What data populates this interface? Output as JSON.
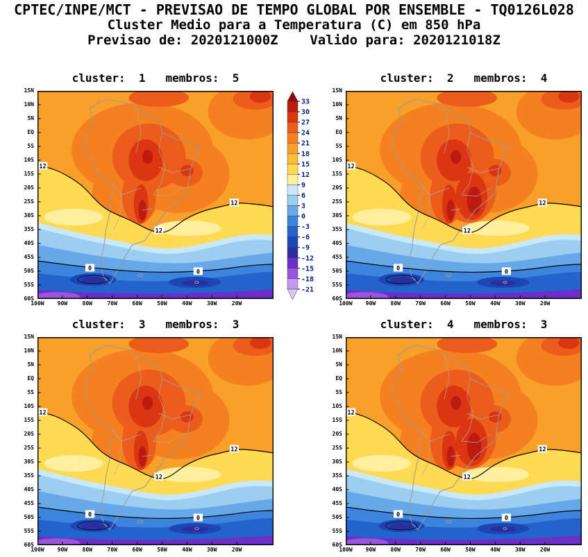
{
  "header": {
    "line1": "CPTEC/INPE/MCT - PREVISAO DE TEMPO GLOBAL POR ENSEMBLE - TQ0126L028",
    "line2": "Cluster Medio para a Temperatura (C) em 850 hPa",
    "line3": "Previsao de: 2020121000Z    Valido para: 2020121018Z"
  },
  "panels": [
    {
      "id": 1,
      "title": "cluster:  1   membros:  5"
    },
    {
      "id": 2,
      "title": "cluster:  2   membros:  4"
    },
    {
      "id": 3,
      "title": "cluster:  3   membros:  3"
    },
    {
      "id": 4,
      "title": "cluster:  4   membros:  3"
    }
  ],
  "axes": {
    "lat_labels": [
      "15N",
      "10N",
      "5N",
      "EQ",
      "5S",
      "10S",
      "15S",
      "20S",
      "25S",
      "30S",
      "35S",
      "40S",
      "45S",
      "50S",
      "55S",
      "60S"
    ],
    "lon_labels": [
      "100W",
      "90W",
      "80W",
      "70W",
      "60W",
      "50W",
      "40W",
      "30W",
      "20W"
    ]
  },
  "contour_labels": {
    "isotherm_12": "12",
    "isotherm_0": "0"
  },
  "colorbar": {
    "tick_labels": [
      "33",
      "30",
      "27",
      "24",
      "21",
      "18",
      "15",
      "12",
      "9",
      "6",
      "3",
      "0",
      "-3",
      "-6",
      "-9",
      "-12",
      "-15",
      "-18",
      "-21"
    ],
    "colors": [
      "#8F0A0A",
      "#BD1B10",
      "#DC3511",
      "#EC5C1A",
      "#F5801F",
      "#F9A02A",
      "#FBBC3C",
      "#FFDA52",
      "#FFEF9E",
      "#C9E8FA",
      "#9CCEF2",
      "#66A8E8",
      "#3D85DC",
      "#2563CC",
      "#1B46B4",
      "#2A2E9E",
      "#6C2EC8",
      "#9A55DC",
      "#C49AEC",
      "#DCC8F6"
    ],
    "label_color": "#00148C"
  }
}
